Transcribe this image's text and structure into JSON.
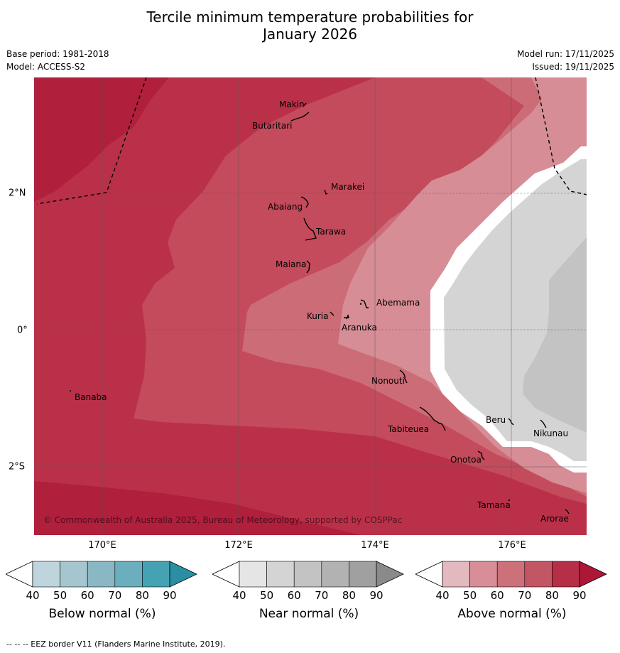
{
  "title_line1": "Tercile minimum temperature probabilities for",
  "title_line2": "January 2026",
  "base_period": "Base period: 1981-2018",
  "model": "Model: ACCESS-S2",
  "model_run": "Model run: 17/11/2025",
  "issued": "Issued: 19/11/2025",
  "copyright": "© Commonwealth of Australia 2025, Bureau of Meteorology, supported by COSPPac",
  "lon_labels": [
    "170°E",
    "172°E",
    "174°E",
    "176°E"
  ],
  "lat_labels": [
    "2°N",
    "0°",
    "2°S"
  ],
  "islands": {
    "makin": "Makin",
    "butaritari": "Butaritari",
    "marakei": "Marakei",
    "abaiang": "Abaiang",
    "tarawa": "Tarawa",
    "maiana": "Maiana",
    "abemama": "Abemama",
    "kuria": "Kuria",
    "aranuka": "Aranuka",
    "banaba": "Banaba",
    "nonouti": "Nonouti",
    "tabiteuea": "Tabiteuea",
    "beru": "Beru",
    "nikunau": "Nikunau",
    "onotoa": "Onotoa",
    "tamana": "Tamana",
    "arorae": "Arorae"
  },
  "colorbars": [
    {
      "label": "Below normal (%)",
      "ticks": [
        "40",
        "50",
        "60",
        "70",
        "80",
        "90"
      ],
      "colors": [
        "#ffffff",
        "#bed5dd",
        "#a6c6cf",
        "#89b8c4",
        "#6baebd",
        "#45a2b2",
        "#2a8fa3"
      ]
    },
    {
      "label": "Near normal (%)",
      "ticks": [
        "40",
        "50",
        "60",
        "70",
        "80",
        "90"
      ],
      "colors": [
        "#ffffff",
        "#e5e5e5",
        "#d4d4d4",
        "#c3c3c3",
        "#b2b2b2",
        "#a0a0a0",
        "#8a8a8a"
      ]
    },
    {
      "label": "Above normal (%)",
      "ticks": [
        "40",
        "50",
        "60",
        "70",
        "80",
        "90"
      ],
      "colors": [
        "#ffffff",
        "#e4b8bf",
        "#d78e97",
        "#cc707a",
        "#c35665",
        "#b72e47",
        "#ad1737"
      ]
    }
  ],
  "map_colors": {
    "above_90": "#b01f3c",
    "above_80": "#bb3049",
    "above_70": "#c34b5b",
    "above_60": "#cc6c76",
    "above_50": "#d78d96",
    "near_50": "#d4d4d4",
    "near_60": "#c3c3c3",
    "white": "#ffffff"
  },
  "footnote": "--  --  -- EEZ border V11 (Flanders Marine Institute, 2019)."
}
